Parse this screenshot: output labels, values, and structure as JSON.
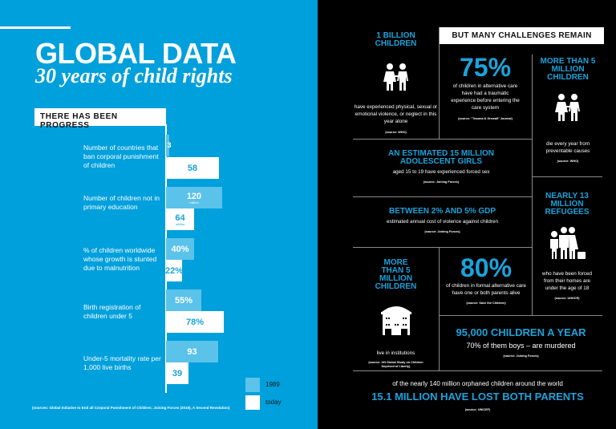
{
  "left": {
    "title": "GLOBAL DATA",
    "subtitle": "30 years of child rights",
    "progress_heading": "THERE HAS BEEN PROGRESS",
    "colors": {
      "background": "#00a0dc",
      "bar_1989": "#5bc2ea",
      "bar_today": "#ffffff"
    },
    "chart_data": {
      "type": "bar",
      "orientation": "horizontal",
      "categories": [
        "Number of countries that ban corporal punishment of children",
        "Number of children not in primary education",
        "% of children worldwide whose growth is stunted due to malnutrition",
        "Birth registration of children under 5",
        "Under-5 mortality rate per 1,000 live births"
      ],
      "series": [
        {
          "name": "1989",
          "labels": [
            "3",
            "120",
            "40%",
            "55%",
            "93"
          ],
          "units": [
            "",
            "million",
            "",
            "",
            ""
          ]
        },
        {
          "name": "today",
          "labels": [
            "58",
            "64",
            "22%",
            "78%",
            "39"
          ],
          "units": [
            "",
            "million",
            "",
            "",
            ""
          ]
        }
      ],
      "legend": "bottom-right"
    },
    "source": "(sources: Global Initiative to End all Corporal Punishment of Children; Joining Forces (2019), A Second Revolution)"
  },
  "right": {
    "header": "BUT MANY CHALLENGES REMAIN",
    "colors": {
      "background": "#000000",
      "accent": "#1aa3dc"
    },
    "cells": {
      "billion": {
        "heading": "1 BILLION CHILDREN",
        "icon": "children-icon",
        "text": "have experienced physical, sexual or emotional violence, or neglect in this year alone",
        "source": "(source: WHO)"
      },
      "seventyfive": {
        "big": "75%",
        "text": "of children in alternative care have had a traumatic experience before entering the care system",
        "source": "(source: \"Trauma & Grewall\" Journal)"
      },
      "five_million_die": {
        "heading": "MORE THAN 5 MILLION CHILDREN",
        "icon": "children-icon",
        "text": "die every year from preventable causes",
        "source": "(source: WHO)"
      },
      "girls": {
        "heading": "AN ESTIMATED 15 MILLION ADOLESCENT GIRLS",
        "text": "aged 15 to 19 have experienced forced sex",
        "source": "(source: Joining Forces)"
      },
      "gdp": {
        "heading": "BETWEEN 2% AND 5% GDP",
        "text": "estimated annual cost of violence against children",
        "source": "(source: Joining Forces)"
      },
      "refugees": {
        "heading": "NEARLY 13 MILLION REFUGEES",
        "icon": "refugee-family-icon",
        "text": "who have been forced from their homes are under the age of 18",
        "source": "(source: UNHCR)"
      },
      "institutions": {
        "heading": "MORE THAN 5 MILLION CHILDREN",
        "icon": "institution-building-icon",
        "text": "live in institutions",
        "source": "(source: UN Global Study on Children Deprived of Liberty)"
      },
      "eighty": {
        "big": "80%",
        "text": "of children in formal alternative care have one or both parents alive",
        "source": "(source: Save the Children)"
      },
      "murdered": {
        "heading": "95,000 CHILDREN A YEAR",
        "text": "70% of them boys – are murdered",
        "source": "(source: Joining Forces)"
      },
      "orphans": {
        "text": "of the nearly 140 million orphaned children around the world",
        "heading": "15.1 MILLION HAVE LOST BOTH PARENTS",
        "source": "(source: UNICEF)"
      }
    }
  }
}
